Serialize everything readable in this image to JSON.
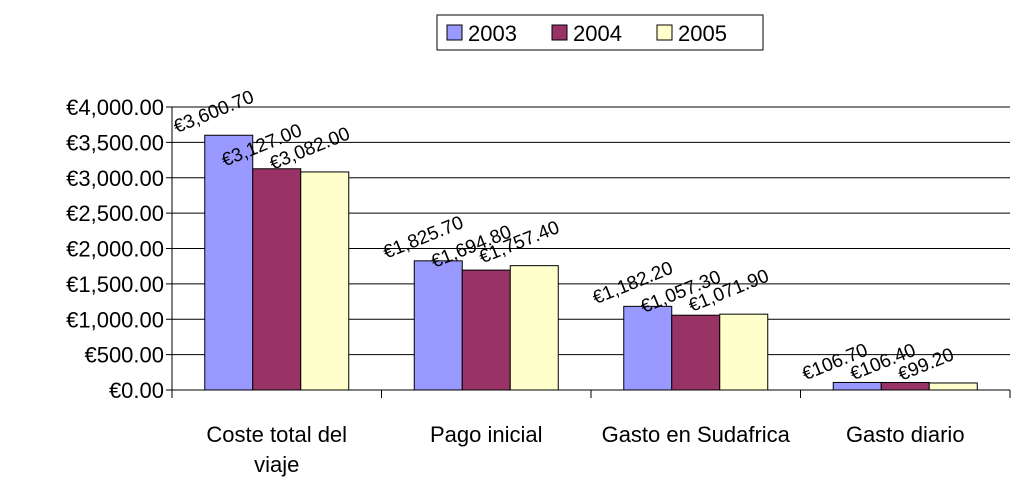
{
  "chart_data": {
    "type": "bar",
    "categories": [
      "Coste total del viaje",
      "Pago inicial",
      "Gasto en Sudafrica",
      "Gasto diario"
    ],
    "series": [
      {
        "name": "2003",
        "color": "#9999ff",
        "values": [
          3600.7,
          1825.7,
          1182.2,
          106.7
        ],
        "value_labels": [
          "€3,600.70",
          "€1,825.70",
          "€1,182.20",
          "€106.70"
        ]
      },
      {
        "name": "2004",
        "color": "#993366",
        "values": [
          3127.0,
          1694.8,
          1057.3,
          106.4
        ],
        "value_labels": [
          "€3,127.00",
          "€1,694.80",
          "€1,057.30",
          "€106.40"
        ]
      },
      {
        "name": "2005",
        "color": "#ffffcc",
        "values": [
          3082.0,
          1757.4,
          1071.9,
          99.2
        ],
        "value_labels": [
          "€3,082.00",
          "€1,757.40",
          "€1,071.90",
          "€99.20"
        ]
      }
    ],
    "ylim": [
      0,
      4000
    ],
    "yticks": [
      {
        "value": 0,
        "label": "€0.00"
      },
      {
        "value": 500,
        "label": "€500.00"
      },
      {
        "value": 1000,
        "label": "€1,000.00"
      },
      {
        "value": 1500,
        "label": "€1,500.00"
      },
      {
        "value": 2000,
        "label": "€2,000.00"
      },
      {
        "value": 2500,
        "label": "€2,500.00"
      },
      {
        "value": 3000,
        "label": "€3,000.00"
      },
      {
        "value": 3500,
        "label": "€3,500.00"
      },
      {
        "value": 4000,
        "label": "€4,000.00"
      }
    ],
    "grid": true,
    "legend": "top"
  }
}
